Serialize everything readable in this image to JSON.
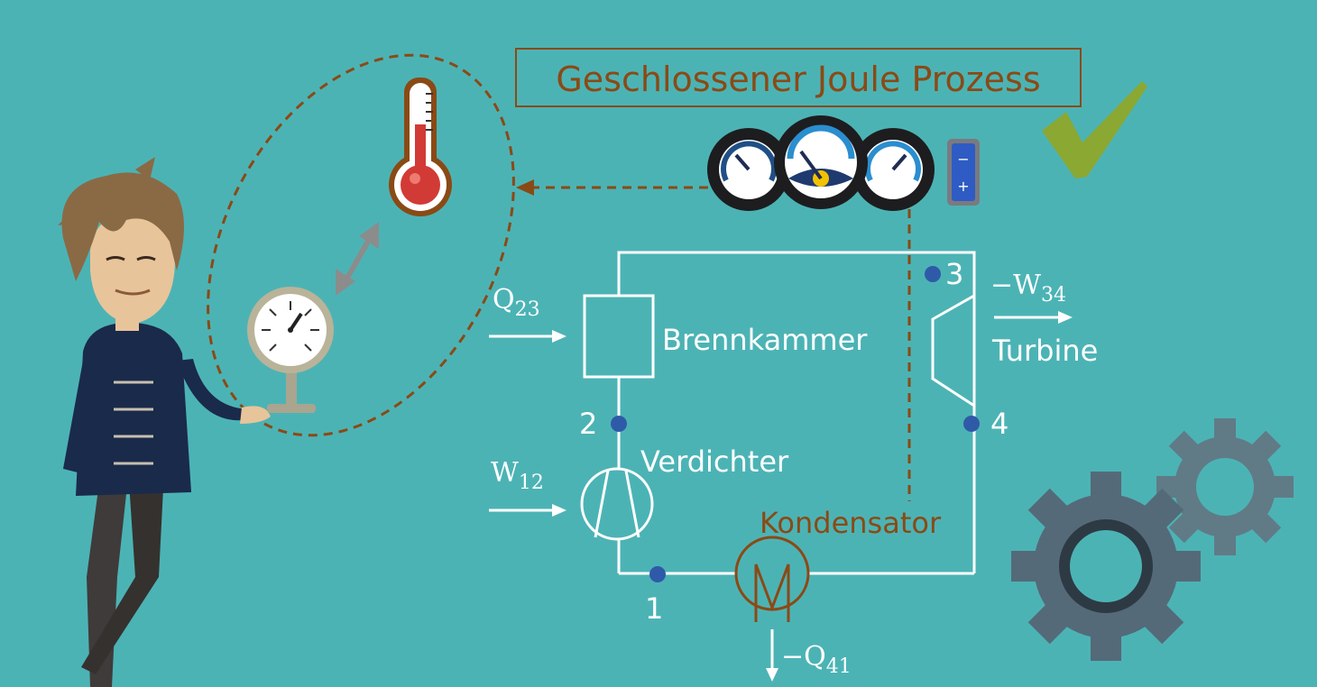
{
  "title": "Geschlossener Joule Prozess",
  "components": {
    "combustion_chamber": "Brennkammer",
    "compressor": "Verdichter",
    "turbine": "Turbine",
    "condenser": "Kondensator"
  },
  "quantities": {
    "q23": {
      "base": "Q",
      "sub": "23"
    },
    "w12": {
      "base": "W",
      "sub": "12"
    },
    "w34": {
      "base": "−W",
      "sub": "34"
    },
    "q41": {
      "base": "−Q",
      "sub": "41"
    }
  },
  "states": [
    "1",
    "2",
    "3",
    "4"
  ],
  "battery": {
    "minus": "−",
    "plus": "+"
  },
  "colors": {
    "background": "#4cb3b5",
    "accent_brown": "#8a4a15",
    "line_white": "#ffffff",
    "state_dot": "#2f5aa8",
    "check_green": "#8aa832",
    "thermometer_red": "#d23a35",
    "gear_gray": "#546a78"
  },
  "icons": [
    "thermometer-icon",
    "pressure-gauge-icon",
    "gauge-cluster-icon",
    "battery-icon",
    "checkmark-icon",
    "gears-icon",
    "person-illustration"
  ]
}
